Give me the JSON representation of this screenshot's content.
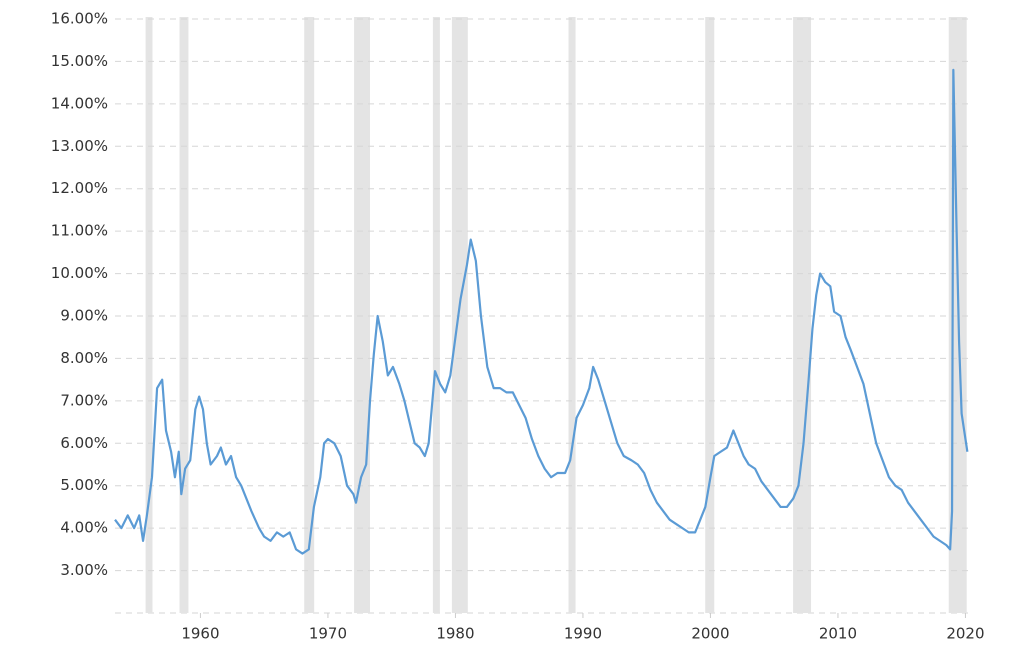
{
  "chart_data": {
    "type": "line",
    "xlim": [
      1953.3,
      2020.2
    ],
    "xticks": [
      1960,
      1970,
      1980,
      1990,
      2000,
      2010,
      2020
    ],
    "ylim": [
      2,
      16
    ],
    "yticks": [
      {
        "value": 3,
        "label": "3.00%"
      },
      {
        "value": 4,
        "label": "4.00%"
      },
      {
        "value": 5,
        "label": "5.00%"
      },
      {
        "value": 6,
        "label": "6.00%"
      },
      {
        "value": 7,
        "label": "7.00%"
      },
      {
        "value": 8,
        "label": "8.00%"
      },
      {
        "value": 9,
        "label": "9.00%"
      },
      {
        "value": 10,
        "label": "10.00%"
      },
      {
        "value": 11,
        "label": "11.00%"
      },
      {
        "value": 12,
        "label": "12.00%"
      },
      {
        "value": 13,
        "label": "13.00%"
      },
      {
        "value": 14,
        "label": "14.00%"
      },
      {
        "value": 15,
        "label": "15.00%"
      },
      {
        "value": 16,
        "label": "16.00%"
      }
    ],
    "grid": true,
    "recession_color": "#e4e4e4",
    "recessions": [
      [
        1955.7,
        1956.24
      ],
      [
        1958.36,
        1959.06
      ],
      [
        1968.14,
        1968.92
      ],
      [
        1972.05,
        1973.3
      ],
      [
        1978.23,
        1978.78
      ],
      [
        1979.72,
        1980.97
      ],
      [
        1988.87,
        1989.42
      ],
      [
        1999.59,
        2000.3
      ],
      [
        2006.48,
        2007.89
      ],
      [
        2018.69,
        2020.1
      ]
    ],
    "series": [
      {
        "color": "#5b9bd5",
        "x": [
          1953.3,
          1953.8,
          1954.3,
          1954.8,
          1955.2,
          1955.5,
          1955.8,
          1956.2,
          1956.6,
          1957.0,
          1957.3,
          1957.7,
          1958.0,
          1958.3,
          1958.5,
          1958.8,
          1959.2,
          1959.6,
          1959.9,
          1960.2,
          1960.5,
          1960.8,
          1961.3,
          1961.6,
          1962.0,
          1962.4,
          1962.8,
          1963.2,
          1963.6,
          1964.0,
          1964.6,
          1965.0,
          1965.5,
          1966.0,
          1966.5,
          1967.0,
          1967.5,
          1968.0,
          1968.5,
          1968.9,
          1969.4,
          1969.7,
          1970.0,
          1970.5,
          1971.0,
          1971.5,
          1972.0,
          1972.2,
          1972.6,
          1973.0,
          1973.3,
          1973.6,
          1973.9,
          1974.3,
          1974.7,
          1975.1,
          1975.6,
          1976.0,
          1976.4,
          1976.8,
          1977.2,
          1977.6,
          1977.9,
          1978.4,
          1978.8,
          1979.2,
          1979.6,
          1980.0,
          1980.4,
          1980.9,
          1981.2,
          1981.6,
          1982.0,
          1982.5,
          1983.0,
          1983.5,
          1984.0,
          1984.5,
          1985.0,
          1985.5,
          1986.0,
          1986.5,
          1987.0,
          1987.5,
          1988.0,
          1988.6,
          1989.0,
          1989.5,
          1990.0,
          1990.5,
          1990.8,
          1991.2,
          1991.7,
          1992.2,
          1992.7,
          1993.2,
          1993.8,
          1994.3,
          1994.8,
          1995.3,
          1995.8,
          1996.3,
          1996.8,
          1997.3,
          1997.8,
          1998.3,
          1998.8,
          1999.2,
          1999.6,
          2000.0,
          2000.3,
          2000.8,
          2001.3,
          2001.8,
          2002.2,
          2002.6,
          2003.0,
          2003.5,
          2004.0,
          2004.5,
          2005.0,
          2005.5,
          2006.0,
          2006.5,
          2006.9,
          2007.3,
          2007.7,
          2008.0,
          2008.3,
          2008.6,
          2009.0,
          2009.4,
          2009.7,
          2010.2,
          2010.6,
          2011.0,
          2011.5,
          2012.0,
          2012.5,
          2013.0,
          2013.5,
          2014.0,
          2014.5,
          2015.0,
          2015.5,
          2016.0,
          2016.5,
          2017.0,
          2017.5,
          2018.0,
          2018.5,
          2018.8,
          2018.95,
          2019.05,
          2019.3,
          2019.5,
          2019.7,
          2019.9,
          2020.05,
          2020.15
        ],
        "values": [
          4.2,
          4.0,
          4.3,
          4.0,
          4.3,
          3.7,
          4.3,
          5.2,
          7.3,
          7.5,
          6.3,
          5.8,
          5.2,
          5.8,
          4.8,
          5.4,
          5.6,
          6.8,
          7.1,
          6.8,
          6.0,
          5.5,
          5.7,
          5.9,
          5.5,
          5.7,
          5.2,
          5.0,
          4.7,
          4.4,
          4.0,
          3.8,
          3.7,
          3.9,
          3.8,
          3.9,
          3.5,
          3.4,
          3.5,
          4.5,
          5.2,
          6.0,
          6.1,
          6.0,
          5.7,
          5.0,
          4.8,
          4.6,
          5.2,
          5.5,
          7.0,
          8.1,
          9.0,
          8.4,
          7.6,
          7.8,
          7.4,
          7.0,
          6.5,
          6.0,
          5.9,
          5.7,
          6.0,
          7.7,
          7.4,
          7.2,
          7.6,
          8.5,
          9.4,
          10.2,
          10.8,
          10.3,
          9.0,
          7.8,
          7.3,
          7.3,
          7.2,
          7.2,
          6.9,
          6.6,
          6.1,
          5.7,
          5.4,
          5.2,
          5.3,
          5.3,
          5.6,
          6.6,
          6.9,
          7.3,
          7.8,
          7.5,
          7.0,
          6.5,
          6.0,
          5.7,
          5.6,
          5.5,
          5.3,
          4.9,
          4.6,
          4.4,
          4.2,
          4.1,
          4.0,
          3.9,
          3.9,
          4.2,
          4.5,
          5.2,
          5.7,
          5.8,
          5.9,
          6.3,
          6.0,
          5.7,
          5.5,
          5.4,
          5.1,
          4.9,
          4.7,
          4.5,
          4.5,
          4.7,
          5.0,
          6.0,
          7.5,
          8.7,
          9.5,
          10.0,
          9.8,
          9.7,
          9.1,
          9.0,
          8.5,
          8.2,
          7.8,
          7.4,
          6.7,
          6.0,
          5.6,
          5.2,
          5.0,
          4.9,
          4.6,
          4.4,
          4.2,
          4.0,
          3.8,
          3.7,
          3.6,
          3.5,
          4.4,
          14.8,
          11.1,
          8.4,
          6.7,
          6.3,
          6.0,
          5.8
        ]
      }
    ]
  }
}
